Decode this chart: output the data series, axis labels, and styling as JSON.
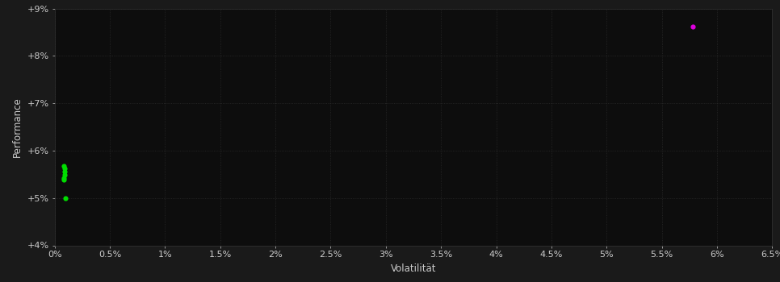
{
  "xlabel": "Volatilität",
  "ylabel": "Performance",
  "background_color": "#1a1a1a",
  "plot_bg_color": "#0d0d0d",
  "grid_color": "#2a2a2a",
  "text_color": "#cccccc",
  "xlim": [
    0,
    0.065
  ],
  "ylim": [
    0.04,
    0.09
  ],
  "x_ticks": [
    0.0,
    0.005,
    0.01,
    0.015,
    0.02,
    0.025,
    0.03,
    0.035,
    0.04,
    0.045,
    0.05,
    0.055,
    0.06,
    0.065
  ],
  "x_tick_labels": [
    "0%",
    "0.5%",
    "1%",
    "1.5%",
    "2%",
    "2.5%",
    "3%",
    "3.5%",
    "4%",
    "4.5%",
    "5%",
    "5.5%",
    "6%",
    "6.5%"
  ],
  "y_ticks": [
    0.04,
    0.05,
    0.06,
    0.07,
    0.08,
    0.09
  ],
  "y_tick_labels": [
    "+4%",
    "+5%",
    "+6%",
    "+7%",
    "+8%",
    "+9%"
  ],
  "green_cluster": [
    [
      0.0008,
      0.0538
    ],
    [
      0.0009,
      0.0548
    ],
    [
      0.0009,
      0.0555
    ],
    [
      0.0009,
      0.0562
    ],
    [
      0.0008,
      0.0568
    ],
    [
      0.0008,
      0.0542
    ]
  ],
  "green_solo": [
    [
      0.001,
      0.05
    ]
  ],
  "magenta_points": [
    [
      0.0578,
      0.0862
    ]
  ],
  "green_color": "#00dd00",
  "magenta_color": "#dd00dd",
  "point_size": 20
}
